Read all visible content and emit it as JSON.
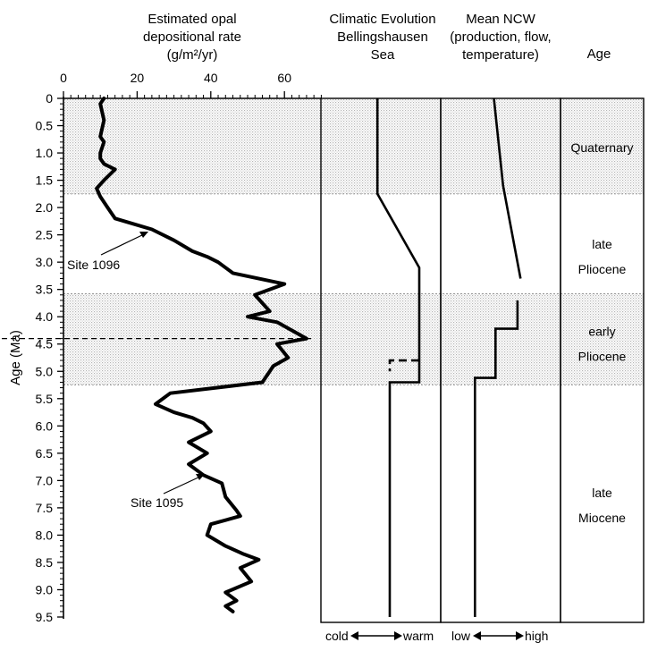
{
  "chart_data": {
    "type": "line",
    "y_axis": {
      "label": "Age (Ma)",
      "range": [
        0,
        9.5
      ],
      "ticks": [
        "0",
        "0.5",
        "1.0",
        "1.5",
        "2.0",
        "2.5",
        "3.0",
        "3.5",
        "4.0",
        "4.5",
        "5.0",
        "5.5",
        "6.0",
        "6.5",
        "7.0",
        "7.5",
        "8.0",
        "8.5",
        "9.0",
        "9.5"
      ],
      "inverted": true
    },
    "shaded_intervals_ma": [
      [
        0,
        1.75
      ],
      [
        3.58,
        5.25
      ]
    ],
    "dashed_reference_age_ma": 4.4,
    "opal_panel": {
      "title_line1": "Estimated opal",
      "title_line2": "depositional rate",
      "units": "(g/m²/yr)",
      "x_range": [
        0,
        70
      ],
      "x_ticks": [
        "0",
        "20",
        "40",
        "60"
      ],
      "series": [
        {
          "name": "Site 1096",
          "points": [
            [
              11,
              0.0
            ],
            [
              10,
              0.1
            ],
            [
              11,
              0.4
            ],
            [
              10,
              0.7
            ],
            [
              11,
              0.8
            ],
            [
              10,
              1.0
            ],
            [
              10,
              1.1
            ],
            [
              11,
              1.2
            ],
            [
              14,
              1.3
            ],
            [
              11,
              1.5
            ],
            [
              9,
              1.65
            ],
            [
              10,
              1.8
            ],
            [
              12,
              2.0
            ],
            [
              14,
              2.2
            ],
            [
              24,
              2.4
            ],
            [
              30,
              2.6
            ],
            [
              35,
              2.8
            ],
            [
              39,
              2.9
            ],
            [
              42,
              3.0
            ],
            [
              44,
              3.1
            ],
            [
              46,
              3.2
            ],
            [
              60,
              3.4
            ],
            [
              52,
              3.6
            ],
            [
              56,
              3.9
            ],
            [
              50,
              4.0
            ],
            [
              58,
              4.1
            ],
            [
              66,
              4.4
            ],
            [
              58,
              4.5
            ],
            [
              61,
              4.75
            ],
            [
              57,
              4.9
            ],
            [
              54,
              5.2
            ]
          ],
          "label": "Site 1096"
        },
        {
          "name": "Site 1095",
          "points": [
            [
              54,
              5.2
            ],
            [
              29,
              5.4
            ],
            [
              25,
              5.6
            ],
            [
              30,
              5.75
            ],
            [
              35,
              5.85
            ],
            [
              38,
              5.95
            ],
            [
              40,
              6.1
            ],
            [
              34,
              6.3
            ],
            [
              39,
              6.5
            ],
            [
              34,
              6.7
            ],
            [
              38,
              6.9
            ],
            [
              43,
              7.05
            ],
            [
              44,
              7.3
            ],
            [
              47,
              7.55
            ],
            [
              48,
              7.65
            ],
            [
              40,
              7.8
            ],
            [
              39,
              8.0
            ],
            [
              44,
              8.2
            ],
            [
              49,
              8.35
            ],
            [
              53,
              8.45
            ],
            [
              48,
              8.6
            ],
            [
              51,
              8.85
            ],
            [
              44,
              9.05
            ],
            [
              47,
              9.2
            ],
            [
              44,
              9.3
            ],
            [
              46,
              9.4
            ]
          ],
          "label": "Site 1095"
        }
      ]
    },
    "climate_panel": {
      "title_line1": "Climatic Evolution",
      "title_line2": "Bellingshausen",
      "title_line3": "Sea",
      "axis_low": "cold",
      "axis_high": "warm",
      "value_range": [
        0,
        1
      ],
      "series": [
        {
          "points": [
            [
              0.22,
              0.0
            ],
            [
              0.22,
              1.75
            ],
            [
              1.0,
              3.1
            ],
            [
              1.0,
              5.2
            ],
            [
              0.45,
              5.2
            ],
            [
              0.45,
              9.5
            ]
          ]
        },
        {
          "style": "dashed",
          "points": [
            [
              1.0,
              4.8
            ],
            [
              0.45,
              4.8
            ],
            [
              0.45,
              5.0
            ]
          ]
        }
      ]
    },
    "ncw_panel": {
      "title_line1": "Mean NCW",
      "title_line2": "(production, flow,",
      "title_line3": "temperature)",
      "axis_low": "low",
      "axis_high": "high",
      "value_range": [
        0,
        1
      ],
      "series": [
        {
          "points": [
            [
              0.43,
              0.0
            ],
            [
              0.55,
              1.6
            ],
            [
              0.78,
              3.3
            ]
          ]
        },
        {
          "points": [
            [
              0.74,
              3.7
            ],
            [
              0.74,
              4.22
            ],
            [
              0.45,
              4.22
            ],
            [
              0.45,
              5.12
            ],
            [
              0.18,
              5.12
            ],
            [
              0.18,
              9.5
            ]
          ]
        }
      ]
    },
    "age_panel": {
      "title": "Age",
      "labels": [
        {
          "line1": "Quaternary",
          "line2": "",
          "age_ma": 0.9
        },
        {
          "line1": "late",
          "line2": "Pliocene",
          "age_ma": 2.85
        },
        {
          "line1": "early",
          "line2": "Pliocene",
          "age_ma": 4.45
        },
        {
          "line1": "late",
          "line2": "Miocene",
          "age_ma": 7.4
        }
      ]
    }
  }
}
